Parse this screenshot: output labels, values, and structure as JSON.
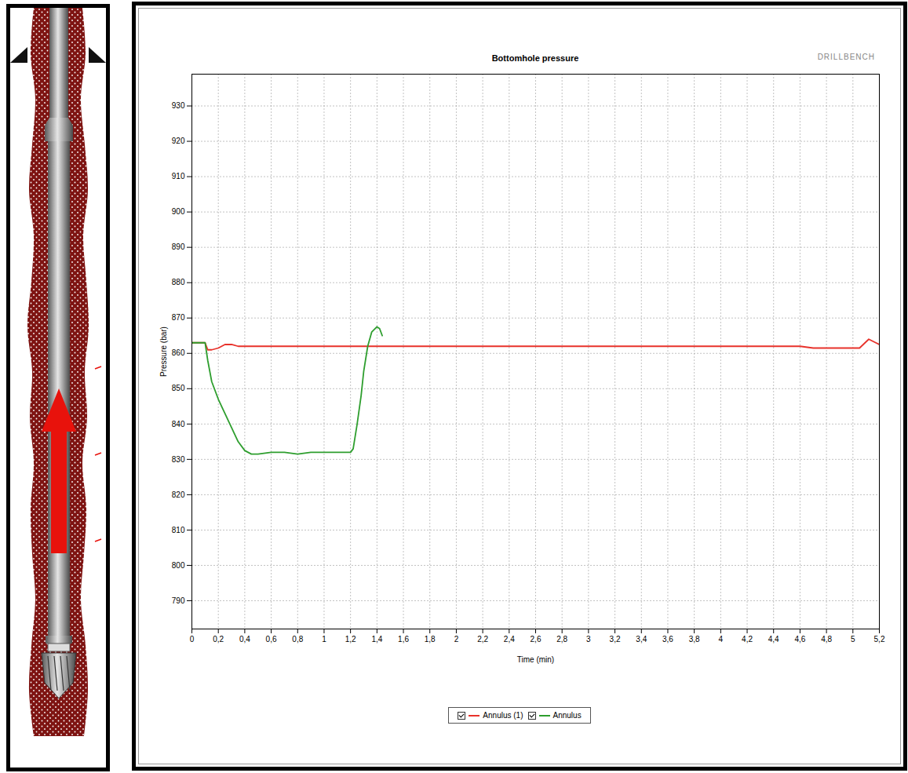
{
  "chart_data": {
    "type": "line",
    "title": "Bottomhole pressure",
    "x_label": "Time (min)",
    "y_label": "Pressure (bar)",
    "annotations": [
      "DRILLBENCH"
    ],
    "x": [
      0,
      0.1,
      0.12,
      0.15,
      0.2,
      0.25,
      0.3,
      0.35,
      0.4,
      0.45,
      0.5,
      0.6,
      0.7,
      0.8,
      0.9,
      1.0,
      1.1,
      1.2,
      1.22,
      1.25,
      1.28,
      1.3,
      1.33,
      1.36,
      1.4,
      1.42,
      1.44,
      2,
      3,
      4,
      4.6,
      4.7,
      5.05,
      5.12,
      5.2
    ],
    "series": [
      {
        "name": "Annulus (1)",
        "color": "#e8322b",
        "values": [
          863,
          863,
          861,
          861,
          861.5,
          862.5,
          862.5,
          862,
          862,
          862,
          862,
          862,
          862,
          862,
          862,
          862,
          862,
          862,
          862,
          862,
          862,
          862,
          862,
          862,
          862,
          862,
          862,
          862,
          862,
          862,
          862,
          861.5,
          861.5,
          864,
          862.5
        ]
      },
      {
        "name": "Annulus",
        "color": "#2e9e2e",
        "values": [
          863,
          863,
          858,
          852,
          847,
          843,
          839,
          835,
          832.5,
          831.5,
          831.5,
          832,
          832,
          831.5,
          832,
          832,
          832,
          832,
          833,
          840,
          848,
          855,
          862,
          866,
          867.5,
          867,
          865,
          null,
          null,
          null,
          null,
          null,
          null,
          null,
          null
        ]
      }
    ],
    "xlim": [
      0,
      5.2
    ],
    "xticks": [
      0,
      {
        "value": 0.2,
        "label": "0,2"
      },
      {
        "value": 0.4,
        "label": "0,4"
      },
      {
        "value": 0.6,
        "label": "0,6"
      },
      {
        "value": 0.8,
        "label": "0,8"
      },
      1,
      {
        "value": 1.2,
        "label": "1,2"
      },
      {
        "value": 1.4,
        "label": "1,4"
      },
      {
        "value": 1.6,
        "label": "1,6"
      },
      {
        "value": 1.8,
        "label": "1,8"
      },
      2,
      {
        "value": 2.2,
        "label": "2,2"
      },
      {
        "value": 2.4,
        "label": "2,4"
      },
      {
        "value": 2.6,
        "label": "2,6"
      },
      {
        "value": 2.8,
        "label": "2,8"
      },
      3,
      {
        "value": 3.2,
        "label": "3,2"
      },
      {
        "value": 3.4,
        "label": "3,4"
      },
      {
        "value": 3.6,
        "label": "3,6"
      },
      {
        "value": 3.8,
        "label": "3,8"
      },
      4,
      {
        "value": 4.2,
        "label": "4,2"
      },
      {
        "value": 4.4,
        "label": "4,4"
      },
      {
        "value": 4.6,
        "label": "4,6"
      },
      {
        "value": 4.8,
        "label": "4,8"
      },
      5,
      {
        "value": 5.2,
        "label": "5,2"
      }
    ],
    "ylim": [
      782,
      939
    ],
    "yticks": [
      790,
      800,
      810,
      820,
      830,
      840,
      850,
      860,
      870,
      880,
      890,
      900,
      910,
      920,
      930
    ],
    "grid": true,
    "legend": "bottom"
  }
}
